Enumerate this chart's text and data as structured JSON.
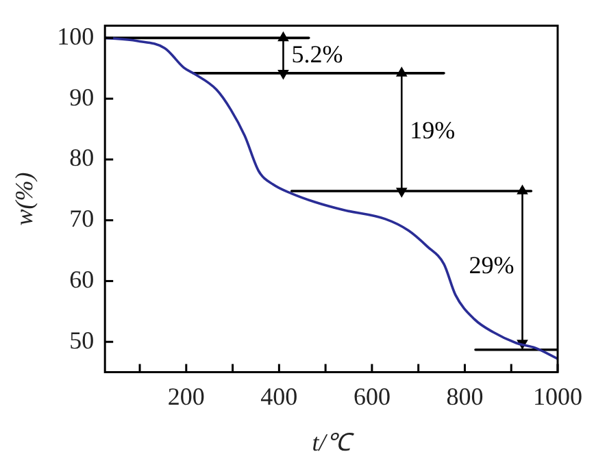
{
  "chart_data": {
    "type": "line",
    "xlabel": "t/℃",
    "ylabel": "w(%)",
    "xlim": [
      25,
      1000
    ],
    "ylim": [
      45,
      102
    ],
    "xticks": [
      {
        "value": 100,
        "label": null
      },
      200,
      {
        "value": 300,
        "label": null
      },
      400,
      {
        "value": 500,
        "label": null
      },
      600,
      {
        "value": 700,
        "label": null
      },
      800,
      {
        "value": 900,
        "label": null
      },
      1000
    ],
    "yticks": [
      50,
      60,
      70,
      80,
      90,
      100
    ],
    "grid": false,
    "legend": false,
    "marker": "none",
    "series": [
      {
        "color": "#2a2d96",
        "x": [
          25,
          94,
          154,
          195,
          215,
          265,
          296,
          326,
          356,
          387,
          427,
          477,
          538,
          629,
          679,
          719,
          755,
          780,
          821,
          861,
          911,
          952,
          1000
        ],
        "values": [
          100,
          99.5,
          98.3,
          95.1,
          94.2,
          91.5,
          88.2,
          83.9,
          78.1,
          75.9,
          74.4,
          73,
          71.7,
          70.2,
          68.3,
          65.7,
          62.8,
          57.7,
          53.7,
          51.6,
          49.8,
          49,
          47.2
        ]
      },
      {
        "type": "line",
        "color": "#000000",
        "x": [
          25,
          464
        ],
        "values": [
          100,
          100
        ]
      },
      {
        "type": "line",
        "color": "#000000",
        "x": [
          215,
          755
        ],
        "values": [
          94.2,
          94.2
        ]
      },
      {
        "type": "line",
        "color": "#000000",
        "x": [
          427,
          943
        ],
        "values": [
          74.8,
          74.8
        ]
      },
      {
        "type": "line",
        "color": "#000000",
        "x": [
          823,
          1000
        ],
        "values": [
          48.7,
          48.7
        ]
      },
      {
        "type": "line",
        "color": "#000000",
        "marker": "triangle",
        "x": [
          409,
          409
        ],
        "values": [
          100,
          94.2
        ]
      },
      {
        "type": "line",
        "color": "#000000",
        "marker": "triangle",
        "x": [
          664,
          664
        ],
        "values": [
          94.2,
          74.8
        ]
      },
      {
        "type": "line",
        "color": "#000000",
        "marker": "triangle",
        "x": [
          924,
          924
        ],
        "values": [
          74.8,
          49.8
        ]
      }
    ],
    "annotations": [
      "5.2%",
      "19%",
      "29%"
    ]
  }
}
